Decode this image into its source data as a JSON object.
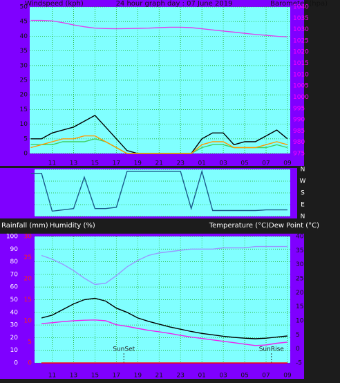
{
  "chart_data": [
    {
      "type": "line",
      "title": "24 hour graph day : 07 June 2019",
      "y_label": "Windspeed (kph)",
      "y2_label": "Barometer (hpa)",
      "x": [
        9,
        10,
        11,
        12,
        13,
        14,
        15,
        16,
        17,
        18,
        19,
        20,
        21,
        22,
        23,
        24,
        25,
        26,
        27,
        28,
        29,
        30,
        31,
        32,
        33
      ],
      "xlim": [
        8.9,
        33.26
      ],
      "xticks": [
        11,
        13,
        15,
        17,
        19,
        21,
        23,
        {
          "value": 25,
          "label": "01"
        },
        {
          "value": 27,
          "label": "03"
        },
        {
          "value": 29,
          "label": "05"
        },
        {
          "value": 31,
          "label": "07"
        },
        {
          "value": 33,
          "label": "09"
        }
      ],
      "ylim": [
        0,
        50
      ],
      "yticks": [
        0,
        5,
        10,
        15,
        20,
        25,
        30,
        35,
        40,
        45,
        50
      ],
      "y2lim": [
        975,
        1040
      ],
      "y2ticks": [
        975,
        980,
        985,
        990,
        995,
        1000,
        1005,
        1010,
        1015,
        1020,
        1025,
        1030,
        1035,
        1040
      ],
      "grid": true,
      "series": [
        {
          "color": "#000000",
          "values": [
            5,
            5,
            7,
            8,
            9,
            11,
            13,
            9,
            5,
            1,
            0,
            0,
            0,
            0,
            0,
            0,
            5,
            7,
            7,
            3,
            4,
            4,
            6,
            8,
            5
          ]
        },
        {
          "color": "#40d060",
          "values": [
            3,
            3,
            3,
            4,
            4,
            4,
            5,
            4,
            2,
            0,
            0,
            0,
            0,
            0,
            0,
            0,
            2,
            3,
            3,
            2,
            2,
            2,
            2,
            3,
            2
          ]
        },
        {
          "color": "#ff9900",
          "values": [
            2,
            3,
            4,
            5,
            5,
            6,
            6,
            4,
            2,
            0,
            0,
            0,
            0,
            0,
            0,
            0,
            3,
            4,
            4,
            2,
            2,
            2,
            3,
            4,
            3
          ]
        },
        {
          "color": "#dd44ee",
          "axis": "y2",
          "values": [
            1034,
            1034,
            1033.8,
            1033,
            1032,
            1031.2,
            1030.6,
            1030.4,
            1030.3,
            1030.4,
            1030.5,
            1030.6,
            1030.8,
            1031,
            1031,
            1030.8,
            1030.3,
            1029.8,
            1029.3,
            1028.8,
            1028.3,
            1027.8,
            1027.4,
            1027,
            1026.7
          ]
        }
      ]
    },
    {
      "type": "line",
      "x": [
        9,
        10,
        11,
        12,
        13,
        14,
        15,
        16,
        17,
        18,
        19,
        20,
        21,
        22,
        23,
        24,
        25,
        26,
        27,
        28,
        29,
        30,
        31,
        32,
        33
      ],
      "xlim": [
        9.35,
        33.26
      ],
      "ylim": [
        0,
        360
      ],
      "yticks": [
        {
          "value": 0,
          "label": "N"
        },
        {
          "value": 90,
          "label": "E"
        },
        {
          "value": 180,
          "label": "S"
        },
        {
          "value": 270,
          "label": "W"
        },
        {
          "value": 360,
          "label": "N"
        }
      ],
      "grid": true,
      "series": [
        {
          "color": "#1a5a8a",
          "values": [
            330,
            330,
            40,
            50,
            60,
            300,
            60,
            60,
            70,
            345,
            345,
            345,
            345,
            345,
            345,
            60,
            345,
            45,
            45,
            45,
            45,
            45,
            50,
            50,
            50
          ]
        }
      ]
    },
    {
      "type": "line",
      "y_label": "Humidity (%)",
      "y3_label": "Rainfall (mm)",
      "y2_label": "Temperature (°C)Dew Point (°C)",
      "x": [
        10,
        11,
        12,
        13,
        14,
        15,
        16,
        17,
        18,
        19,
        20,
        21,
        22,
        23,
        24,
        25,
        26,
        27,
        28,
        29,
        30,
        31,
        32,
        33
      ],
      "xlim": [
        9.35,
        33.26
      ],
      "xticks": [
        11,
        13,
        15,
        17,
        19,
        21,
        23,
        {
          "value": 25,
          "label": "01"
        },
        {
          "value": 27,
          "label": "03"
        },
        {
          "value": 29,
          "label": "05"
        },
        {
          "value": 31,
          "label": "07"
        },
        {
          "value": 33,
          "label": "09"
        }
      ],
      "ylim": [
        0,
        100
      ],
      "yticks": [
        0,
        10,
        20,
        30,
        40,
        50,
        60,
        70,
        80,
        90,
        100
      ],
      "y2lim": [
        -5,
        40
      ],
      "y2ticks": [
        -5,
        0,
        5,
        10,
        15,
        20,
        25,
        30,
        35,
        40
      ],
      "y3lim": [
        0,
        30
      ],
      "y3ticks": [
        0,
        5,
        10,
        15,
        20,
        25,
        30
      ],
      "grid": true,
      "annotations": [
        {
          "text": "SunSet",
          "x": 17.7
        },
        {
          "text": "SunRise",
          "x": 31.5
        }
      ],
      "series": [
        {
          "color": "#9999ff",
          "values": [
            85,
            82,
            78,
            73,
            67,
            62,
            63,
            69,
            76,
            81,
            85,
            87,
            88,
            89,
            90,
            90,
            90,
            91,
            91,
            91,
            92,
            92,
            92,
            92
          ]
        },
        {
          "color": "#000000",
          "axis": "y2",
          "values": [
            11,
            12,
            14,
            16,
            17.5,
            18,
            17,
            14.5,
            13,
            11,
            9.8,
            8.8,
            7.8,
            7,
            6.2,
            5.5,
            5,
            4.5,
            4.1,
            3.8,
            3.6,
            3.8,
            4.2,
            4.6
          ]
        },
        {
          "color": "#ee22ee",
          "axis": "y2",
          "values": [
            9,
            9.3,
            9.7,
            10,
            10.2,
            10.3,
            10,
            8.6,
            8,
            7.3,
            6.6,
            6.1,
            5.5,
            4.8,
            4.2,
            3.7,
            3.2,
            2.7,
            2.2,
            1.7,
            1.2,
            1.4,
            2,
            2.4
          ]
        },
        {
          "color": "#ff0000",
          "axis": "y3",
          "values": [
            0,
            0,
            0,
            0,
            0,
            0,
            0,
            0,
            0,
            0,
            0,
            0,
            0,
            0,
            0,
            0,
            0,
            0,
            0,
            0,
            0,
            0,
            0,
            0
          ]
        }
      ]
    }
  ]
}
